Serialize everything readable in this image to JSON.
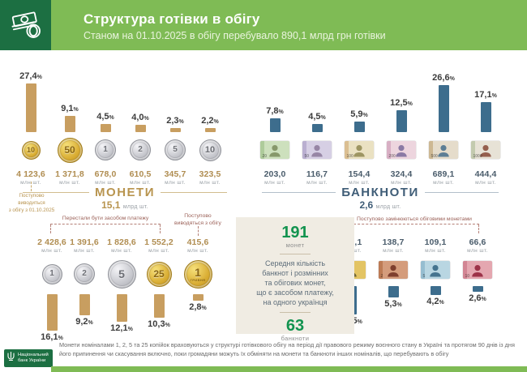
{
  "header": {
    "title": "Структура готівки в обігу",
    "subtitle": "Станом на 01.10.2025  в обігу перебувало 890,1 млрд грн готівки"
  },
  "units": {
    "mln": "млн шт.",
    "mlrd": "млрд шт."
  },
  "coins": {
    "title": "МОНЕТИ",
    "total_value": "15,1",
    "total_unit": "млрд шт.",
    "col1_note": "Поступово\nвиводиться\nз обігу з 01.10.2025",
    "withdrawn_bracket_label": "Перестали бути засобом платежу",
    "withdrawing_note": "Поступово\nвиводяться з обігу",
    "in_circulation": [
      {
        "denomination": "10",
        "pct": "27,4",
        "value": "4 123,6",
        "metal": "gold",
        "size": 21
      },
      {
        "denomination": "50",
        "pct": "9,1",
        "value": "1 371,8",
        "metal": "gold",
        "size": 29
      },
      {
        "denomination": "1",
        "pct": "4,5",
        "value": "678,0",
        "metal": "silver",
        "size": 24
      },
      {
        "denomination": "2",
        "pct": "4,0",
        "value": "610,5",
        "metal": "silver",
        "size": 24
      },
      {
        "denomination": "5",
        "pct": "2,3",
        "value": "345,7",
        "metal": "silver",
        "size": 24
      },
      {
        "denomination": "10",
        "pct": "2,2",
        "value": "323,5",
        "metal": "silver",
        "size": 25
      }
    ],
    "withdrawn": [
      {
        "denomination": "1",
        "pct": "16,1",
        "value": "2 428,6",
        "metal": "silver",
        "size": 23
      },
      {
        "denomination": "2",
        "pct": "9,2",
        "value": "1 391,6",
        "metal": "silver",
        "size": 24
      },
      {
        "denomination": "5",
        "pct": "12,1",
        "value": "1 828,6",
        "metal": "silver",
        "size": 33
      },
      {
        "denomination": "25",
        "pct": "10,3",
        "value": "1 552,2",
        "metal": "gold",
        "size": 29
      },
      {
        "denomination": "1",
        "pct": "2,8",
        "value": "415,6",
        "metal": "gold",
        "size": 33,
        "sub": "ГРИВНЯ"
      }
    ]
  },
  "banknotes": {
    "title": "БАНКНОТИ",
    "total_value": "2,6",
    "total_unit": "млрд шт.",
    "replaced_bracket_label": "Поступово замінюються обіговими монетами",
    "in_circulation": [
      {
        "denomination": "20",
        "pct": "7,8",
        "value": "203,0",
        "bg": "#cde0bd",
        "fg": "#87986b",
        "band": "#a8c795"
      },
      {
        "denomination": "50",
        "pct": "4,5",
        "value": "116,7",
        "bg": "#d6cfe4",
        "fg": "#9786a5",
        "band": "#b5a9cc"
      },
      {
        "denomination": "100",
        "pct": "5,9",
        "value": "154,4",
        "bg": "#eae1c2",
        "fg": "#9d9562",
        "band": "#d8b98a"
      },
      {
        "denomination": "200",
        "pct": "12,5",
        "value": "324,4",
        "bg": "#edd5de",
        "fg": "#8b7aa4",
        "band": "#d3a8c0"
      },
      {
        "denomination": "500",
        "pct": "26,6",
        "value": "689,1",
        "bg": "#e5dccb",
        "fg": "#5d7e95",
        "band": "#c9b289"
      },
      {
        "denomination": "1000",
        "pct": "17,1",
        "value": "444,4",
        "bg": "#e7e2d6",
        "fg": "#955f4e",
        "band": "#bcc5a8"
      }
    ],
    "withdrawn": [
      {
        "denomination": "1",
        "pct": "13,5",
        "value": "349,1",
        "bg": "#e3c464",
        "fg": "#6f6536",
        "band": "#4f7cab"
      },
      {
        "denomination": "2",
        "pct": "5,3",
        "value": "138,7",
        "bg": "#d49c7c",
        "fg": "#7e3f2e",
        "band": "#b8764f"
      },
      {
        "denomination": "5",
        "pct": "4,2",
        "value": "109,1",
        "bg": "#b9d6e2",
        "fg": "#45748f",
        "band": "#8fb9cc"
      },
      {
        "denomination": "10",
        "pct": "2,6",
        "value": "66,6",
        "bg": "#e4a7b0",
        "fg": "#9c3248",
        "band": "#cf7f8e"
      }
    ]
  },
  "panel": {
    "count_coins": "191",
    "count_coins_label": "монет",
    "text": "Середня кількість\nбанкнот і розмінних\nта обігових монет,\nщо є засобом платежу,\nна одного українця",
    "count_notes": "63",
    "count_notes_label": "банкноти"
  },
  "footer": {
    "disclaimer": "Монети номіналами 1, 2, 5 та 25 копійок враховуються у структурі готівкового обігу на період дії правового режиму воєнного стану в Україні та протягом 90 днів із дня його припинення чи скасування включно, поки громадяни можуть їх обміняти на  монети та  банкноти інших номіналів, що перебувають в обігу",
    "nbu": "Національний\nбанк України"
  },
  "chart_data": [
    {
      "type": "bar",
      "title": "МОНЕТИ — частка в обігу, %",
      "categories": [
        "10 коп",
        "50 коп",
        "1 грн",
        "2 грн",
        "5 грн",
        "10 грн"
      ],
      "values": [
        27.4,
        9.1,
        4.5,
        4.0,
        2.3,
        2.2
      ],
      "counts_mln": [
        4123.6,
        1371.8,
        678.0,
        610.5,
        345.7,
        323.5
      ],
      "total": "15,1 млрд шт.",
      "ylabel": "%",
      "ylim": [
        0,
        30
      ],
      "grid": false
    },
    {
      "type": "bar",
      "title": "БАНКНОТИ — частка в обігу, %",
      "categories": [
        "20 грн",
        "50 грн",
        "100 грн",
        "200 грн",
        "500 грн",
        "1000 грн"
      ],
      "values": [
        7.8,
        4.5,
        5.9,
        12.5,
        26.6,
        17.1
      ],
      "counts_mln": [
        203.0,
        116.7,
        154.4,
        324.4,
        689.1,
        444.4
      ],
      "total": "2,6 млрд шт.",
      "ylabel": "%",
      "ylim": [
        0,
        30
      ],
      "grid": false
    },
    {
      "type": "bar",
      "title": "Монети, що перестали бути засобом платежу / виводяться з обігу, %",
      "categories": [
        "1 коп",
        "2 коп",
        "5 коп",
        "25 коп",
        "1 грн (стара)"
      ],
      "values": [
        16.1,
        9.2,
        12.1,
        10.3,
        2.8
      ],
      "counts_mln": [
        2428.6,
        1391.6,
        1828.6,
        1552.2,
        415.6
      ],
      "ylabel": "%",
      "ylim": [
        0,
        20
      ],
      "grid": false
    },
    {
      "type": "bar",
      "title": "Банкноти, що поступово замінюються обіговими монетами, %",
      "categories": [
        "1 грн",
        "2 грн",
        "5 грн",
        "10 грн"
      ],
      "values": [
        13.5,
        5.3,
        4.2,
        2.6
      ],
      "counts_mln": [
        349.1,
        138.7,
        109.1,
        66.6
      ],
      "ylabel": "%",
      "ylim": [
        0,
        20
      ],
      "grid": false
    }
  ]
}
